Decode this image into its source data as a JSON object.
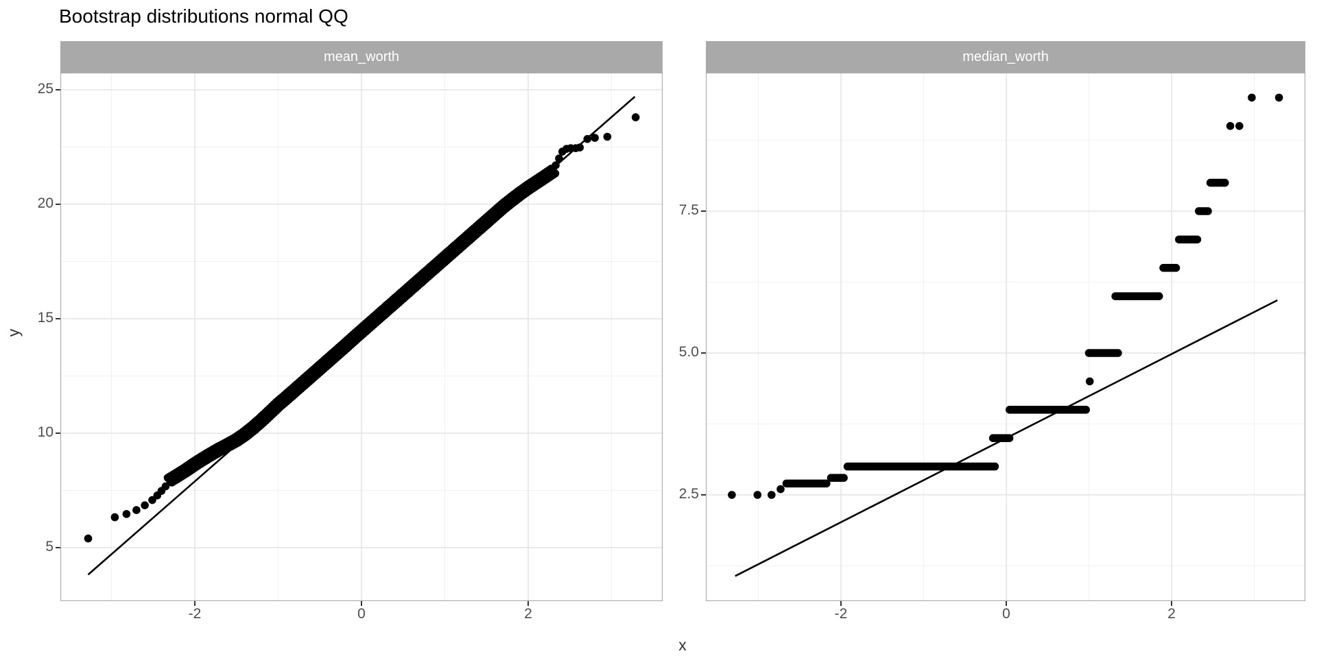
{
  "title": "Bootstrap distributions normal QQ",
  "colors": {
    "background": "#FFFFFF",
    "point": "#000000",
    "qq_line": "#000000",
    "strip_fill": "#A9A9A9",
    "strip_text": "#FFFFFF",
    "grid_major": "#E3E3E3",
    "grid_minor": "#F1F1F1",
    "panel_border": "#AAAAAA",
    "tick": "#333333",
    "tick_label": "#4D4D4D",
    "axis_title": "#333333",
    "title": "#000000"
  },
  "chart_data": [
    {
      "type": "scatter",
      "facet": "mean_worth",
      "xlabel": "x",
      "ylabel": "y",
      "xlim": [
        -3.61,
        3.61
      ],
      "ylim": [
        2.67,
        25.75
      ],
      "grid": "on",
      "x_ticks": [
        {
          "v": -2,
          "label": "-2"
        },
        {
          "v": 0,
          "label": "0"
        },
        {
          "v": 2,
          "label": "2"
        }
      ],
      "x_minor": [
        -3,
        -1,
        1,
        3
      ],
      "y_ticks": [
        {
          "v": 25,
          "label": "25"
        },
        {
          "v": 20,
          "label": "20"
        },
        {
          "v": 15,
          "label": "15"
        },
        {
          "v": 10,
          "label": "10"
        },
        {
          "v": 5,
          "label": "5"
        }
      ],
      "y_minor": [
        22.5,
        17.5,
        12.5,
        7.5
      ],
      "qq_line": {
        "x1": -3.28,
        "y1": 3.82,
        "x2": 3.28,
        "y2": 24.7
      },
      "points_lower_tail": [
        [
          -3.28,
          5.4
        ],
        [
          -2.96,
          6.33
        ],
        [
          -2.82,
          6.47
        ],
        [
          -2.7,
          6.64
        ],
        [
          -2.6,
          6.85
        ],
        [
          -2.51,
          7.08
        ],
        [
          -2.45,
          7.28
        ],
        [
          -2.4,
          7.48
        ],
        [
          -2.35,
          7.68
        ]
      ],
      "points_band": [
        [
          -2.3,
          7.95
        ],
        [
          -2.2,
          8.17
        ],
        [
          -2.1,
          8.4
        ],
        [
          -2.0,
          8.65
        ],
        [
          -1.9,
          8.88
        ],
        [
          -1.8,
          9.1
        ],
        [
          -1.7,
          9.31
        ],
        [
          -1.6,
          9.5
        ],
        [
          -1.5,
          9.7
        ],
        [
          -1.4,
          9.95
        ],
        [
          -1.3,
          10.24
        ],
        [
          -1.2,
          10.56
        ],
        [
          -1.1,
          10.9
        ],
        [
          -1.0,
          11.25
        ],
        [
          -0.9,
          11.56
        ],
        [
          -0.8,
          11.88
        ],
        [
          -0.7,
          12.2
        ],
        [
          -0.6,
          12.52
        ],
        [
          -0.5,
          12.84
        ],
        [
          -0.4,
          13.16
        ],
        [
          -0.3,
          13.48
        ],
        [
          -0.2,
          13.8
        ],
        [
          -0.1,
          14.13
        ],
        [
          0,
          14.45
        ],
        [
          0.1,
          14.77
        ],
        [
          0.2,
          15.09
        ],
        [
          0.3,
          15.41
        ],
        [
          0.4,
          15.73
        ],
        [
          0.5,
          16.05
        ],
        [
          0.6,
          16.37
        ],
        [
          0.7,
          16.69
        ],
        [
          0.8,
          17.01
        ],
        [
          0.9,
          17.33
        ],
        [
          1.0,
          17.65
        ],
        [
          1.1,
          17.97
        ],
        [
          1.2,
          18.29
        ],
        [
          1.3,
          18.61
        ],
        [
          1.4,
          18.93
        ],
        [
          1.5,
          19.25
        ],
        [
          1.6,
          19.57
        ],
        [
          1.7,
          19.89
        ],
        [
          1.8,
          20.18
        ],
        [
          1.9,
          20.46
        ],
        [
          2.0,
          20.72
        ],
        [
          2.1,
          20.96
        ],
        [
          2.2,
          21.2
        ],
        [
          2.3,
          21.45
        ]
      ],
      "points_upper_tail": [
        [
          2.33,
          21.7
        ],
        [
          2.37,
          22.0
        ],
        [
          2.41,
          22.3
        ],
        [
          2.46,
          22.42
        ],
        [
          2.51,
          22.45
        ],
        [
          2.57,
          22.45
        ],
        [
          2.62,
          22.48
        ],
        [
          2.71,
          22.85
        ],
        [
          2.8,
          22.9
        ],
        [
          2.95,
          22.95
        ],
        [
          3.29,
          23.8
        ]
      ]
    },
    {
      "type": "scatter",
      "facet": "median_worth",
      "xlabel": "x",
      "ylabel": "y",
      "xlim": [
        -3.63,
        3.62
      ],
      "ylim": [
        0.63,
        9.94
      ],
      "grid": "on",
      "x_ticks": [
        {
          "v": -2,
          "label": "-2"
        },
        {
          "v": 0,
          "label": "0"
        },
        {
          "v": 2,
          "label": "2"
        }
      ],
      "x_minor": [
        -3,
        -1,
        1,
        3
      ],
      "y_ticks": [
        {
          "v": 7.5,
          "label": "7.5"
        },
        {
          "v": 5,
          "label": "5.0"
        },
        {
          "v": 2.5,
          "label": "2.5"
        }
      ],
      "y_minor": [
        8.75,
        6.25,
        3.75,
        1.25
      ],
      "qq_line": {
        "x1": -3.28,
        "y1": 1.07,
        "x2": 3.28,
        "y2": 5.93
      },
      "points_single": [
        [
          -3.32,
          2.5
        ],
        [
          -3.01,
          2.5
        ],
        [
          -2.84,
          2.5
        ],
        [
          -2.73,
          2.6
        ],
        [
          1.01,
          4.5
        ],
        [
          2.71,
          9.0
        ],
        [
          2.82,
          9.0
        ],
        [
          2.97,
          9.5
        ],
        [
          3.3,
          9.5
        ]
      ],
      "steps": [
        {
          "y": 2.7,
          "x_from": -2.66,
          "x_to": -2.17
        },
        {
          "y": 2.8,
          "x_from": -2.12,
          "x_to": -1.96
        },
        {
          "y": 3.0,
          "x_from": -1.92,
          "x_to": -0.12
        },
        {
          "y": 3.5,
          "x_from": -0.16,
          "x_to": 0.05
        },
        {
          "y": 4.0,
          "x_from": 0.04,
          "x_to": 0.97
        },
        {
          "y": 5.0,
          "x_from": 1.0,
          "x_to": 1.36
        },
        {
          "y": 6.0,
          "x_from": 1.32,
          "x_to": 1.86
        },
        {
          "y": 6.5,
          "x_from": 1.9,
          "x_to": 2.06
        },
        {
          "y": 7.0,
          "x_from": 2.09,
          "x_to": 2.31
        },
        {
          "y": 7.5,
          "x_from": 2.33,
          "x_to": 2.45
        },
        {
          "y": 8.0,
          "x_from": 2.47,
          "x_to": 2.66
        }
      ]
    }
  ]
}
